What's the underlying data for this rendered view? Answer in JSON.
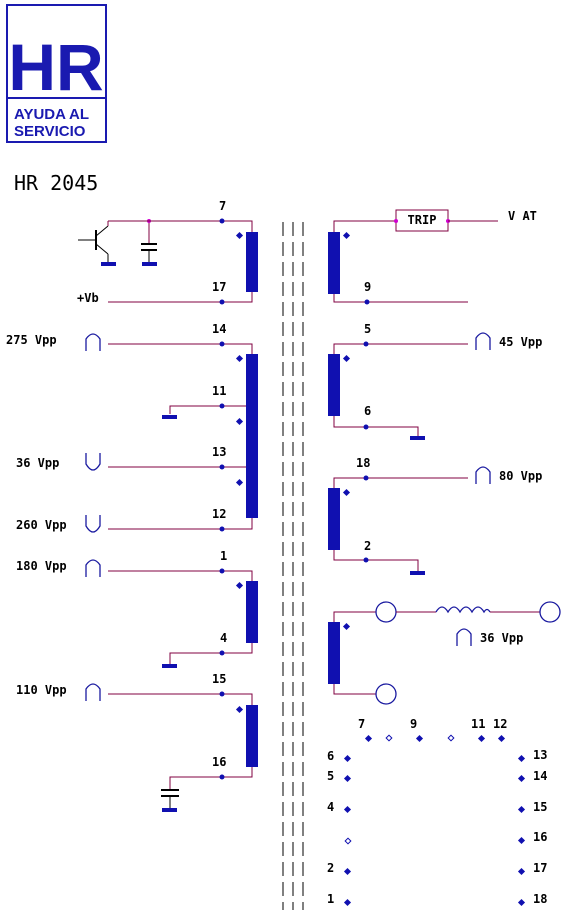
{
  "logo": {
    "main": "HR",
    "line1": "AYUDA AL",
    "line2": "SERVICIO"
  },
  "title": "HR 2045",
  "trip_label": "TRIP",
  "v_at_label": "V AT",
  "vb_label": "+Vb",
  "pins": {
    "p7": "7",
    "p17": "17",
    "p9": "9",
    "p14": "14",
    "p11": "11",
    "p13": "13",
    "p12": "12",
    "p5": "5",
    "p6": "6",
    "p18": "18",
    "p2": "2",
    "p1": "1",
    "p4": "4",
    "p15": "15",
    "p16": "16"
  },
  "voltages": {
    "v275": "275 Vpp",
    "v36a": "36 Vpp",
    "v260": "260 Vpp",
    "v180": "180 Vpp",
    "v110": "110 Vpp",
    "v45": "45 Vpp",
    "v80": "80 Vpp",
    "v36b": "36 Vpp"
  },
  "pinout": {
    "top": [
      "7",
      "9",
      "11",
      "12"
    ],
    "left": [
      "6",
      "5",
      "4",
      "2",
      "1"
    ],
    "right": [
      "13",
      "14",
      "15",
      "16",
      "17",
      "18"
    ]
  }
}
